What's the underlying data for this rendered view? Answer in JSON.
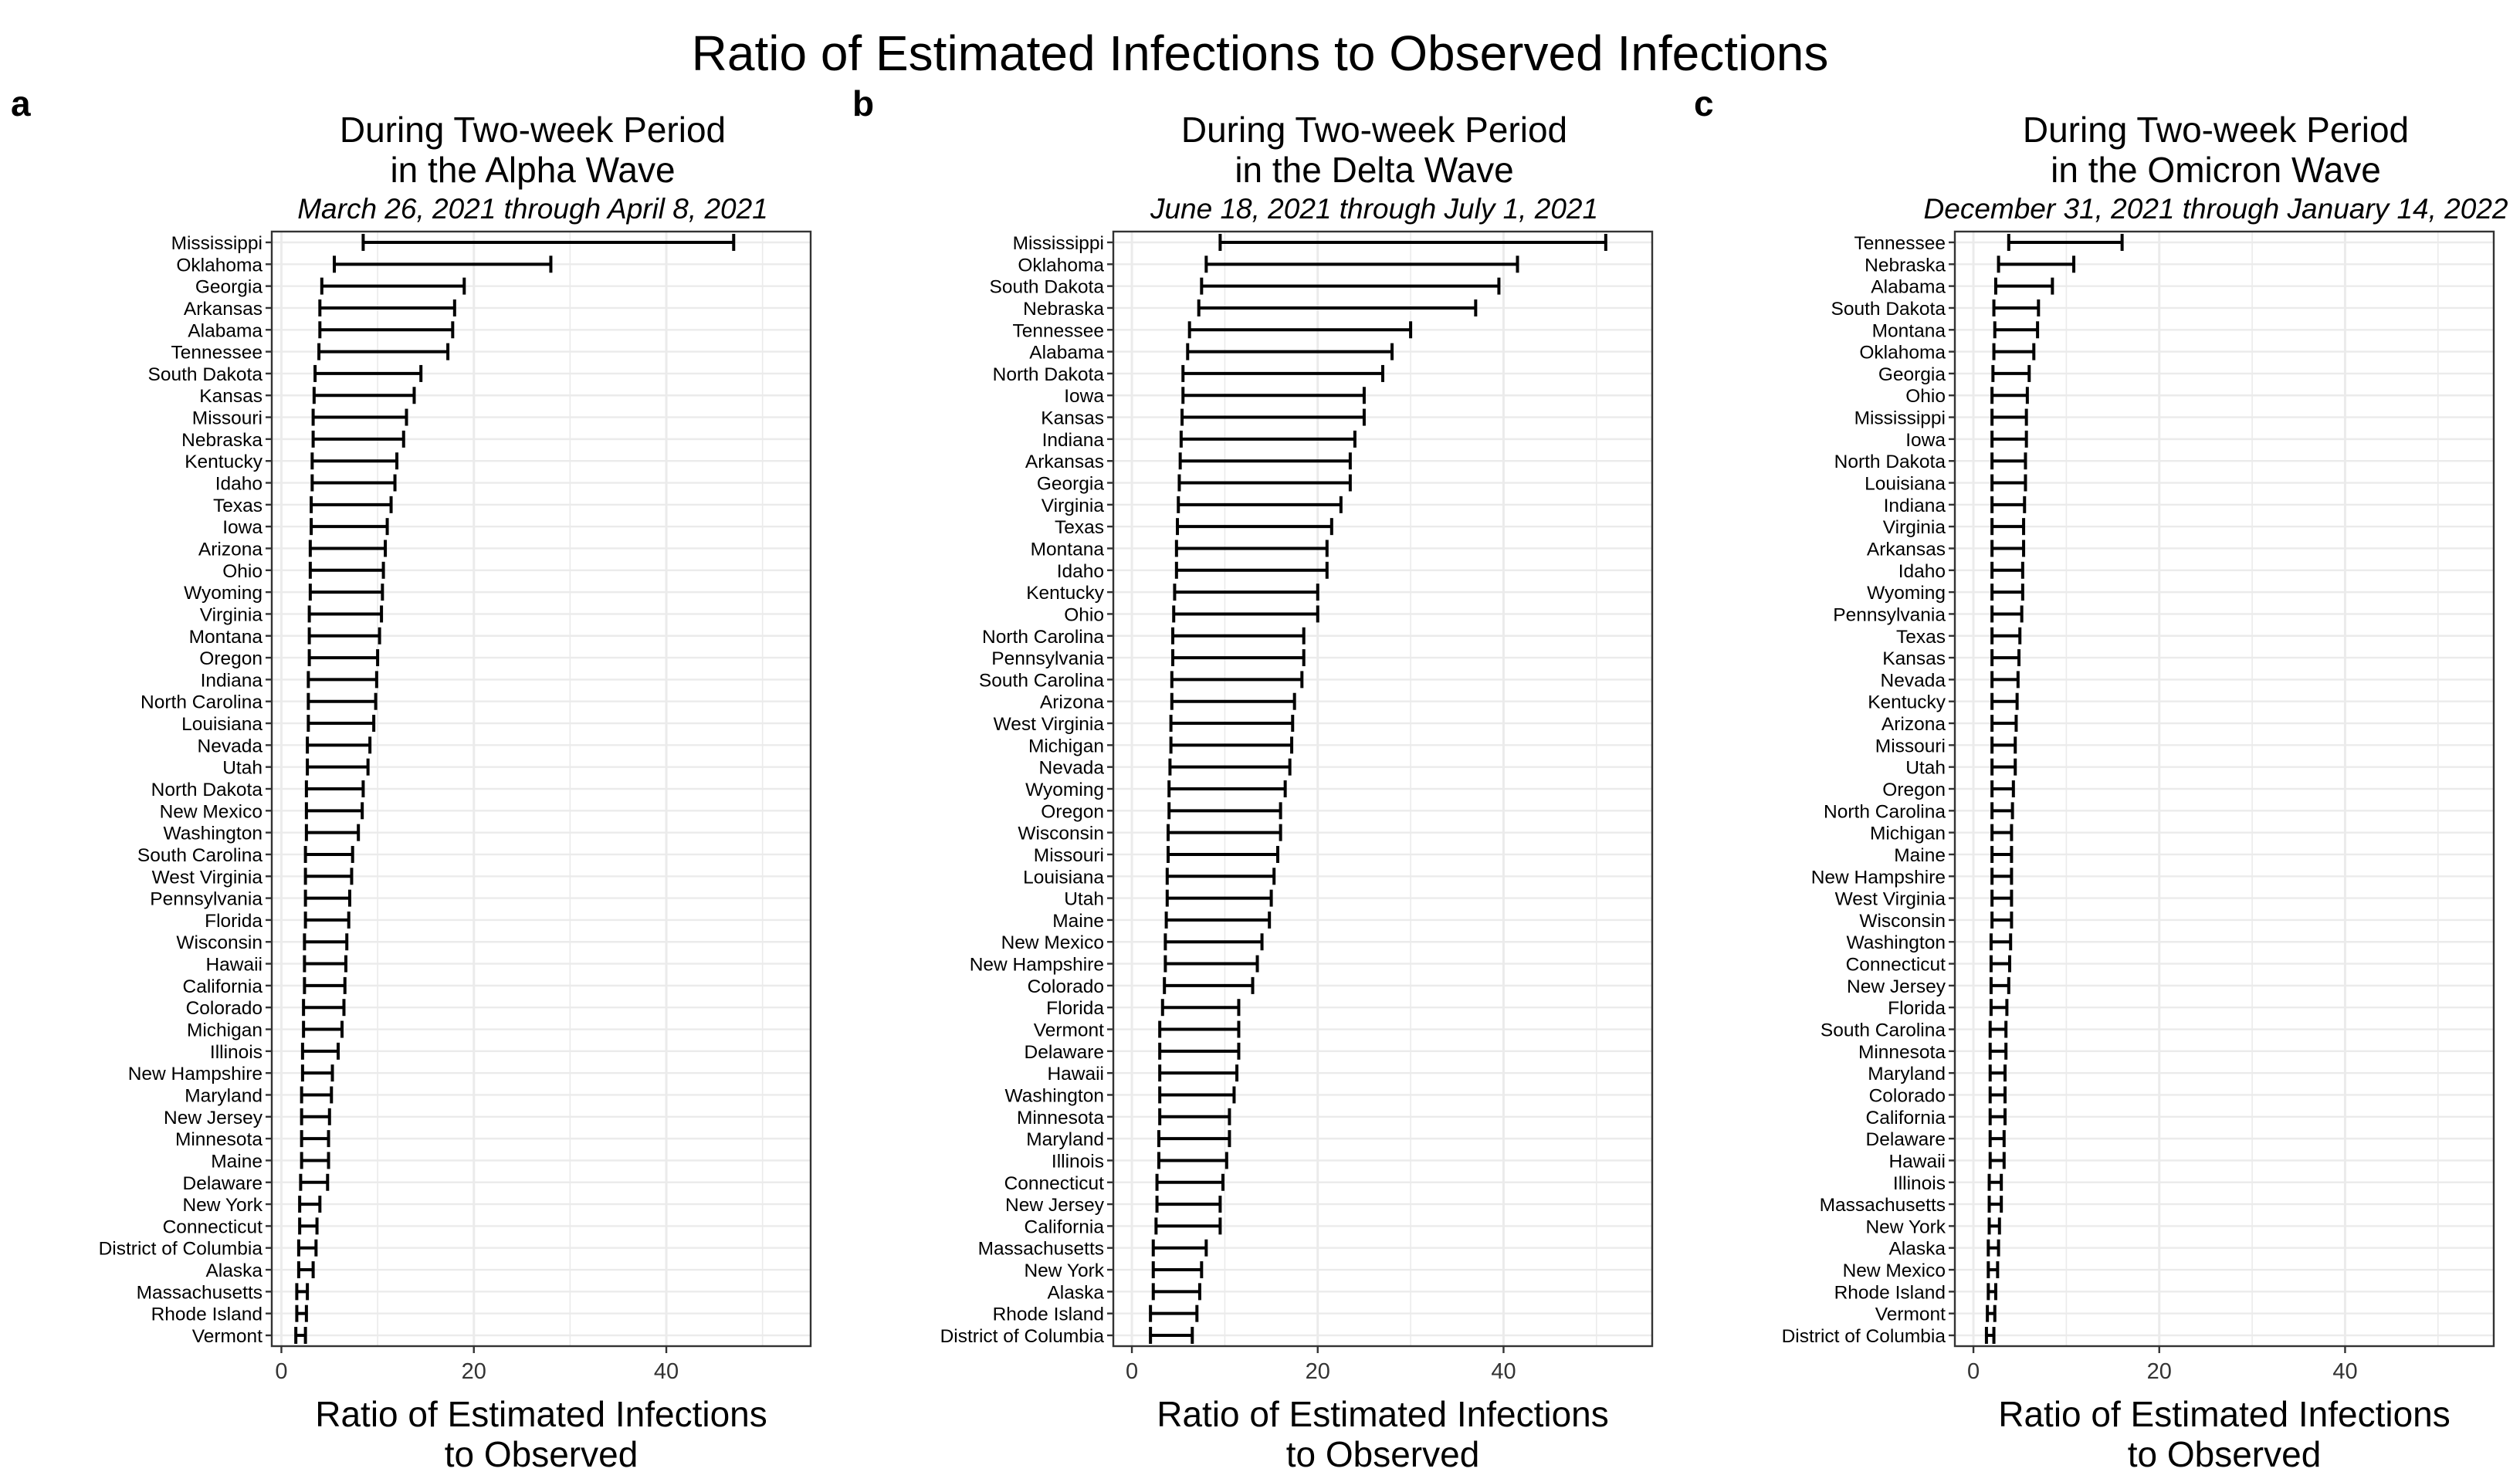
{
  "title": "Ratio of Estimated Infections to Observed Infections",
  "chart_data": [
    {
      "type": "interval",
      "panel_label": "a",
      "title": "During Two-week Period",
      "title_line2": "in the Alpha Wave",
      "subtitle": "March 26, 2021 through April 8, 2021",
      "xlabel": "Ratio of Estimated Infections",
      "xlabel_line2": "to Observed",
      "xlim": [
        -1,
        55
      ],
      "xticks": [
        0,
        20,
        40
      ],
      "grid": true,
      "categories": [
        "Mississippi",
        "Oklahoma",
        "Georgia",
        "Arkansas",
        "Alabama",
        "Tennessee",
        "South Dakota",
        "Kansas",
        "Missouri",
        "Nebraska",
        "Kentucky",
        "Idaho",
        "Texas",
        "Iowa",
        "Arizona",
        "Ohio",
        "Wyoming",
        "Virginia",
        "Montana",
        "Oregon",
        "Indiana",
        "North Carolina",
        "Louisiana",
        "Nevada",
        "Utah",
        "North Dakota",
        "New Mexico",
        "Washington",
        "South Carolina",
        "West Virginia",
        "Pennsylvania",
        "Florida",
        "Wisconsin",
        "Hawaii",
        "California",
        "Colorado",
        "Michigan",
        "Illinois",
        "New Hampshire",
        "Maryland",
        "New Jersey",
        "Minnesota",
        "Maine",
        "Delaware",
        "New York",
        "Connecticut",
        "District of Columbia",
        "Alaska",
        "Massachusetts",
        "Rhode Island",
        "Vermont"
      ],
      "lower": [
        8.5,
        5.5,
        4.2,
        4.0,
        4.0,
        3.9,
        3.5,
        3.4,
        3.3,
        3.3,
        3.2,
        3.2,
        3.1,
        3.1,
        3.0,
        3.0,
        3.0,
        2.9,
        2.9,
        2.9,
        2.8,
        2.8,
        2.8,
        2.7,
        2.7,
        2.6,
        2.6,
        2.6,
        2.5,
        2.5,
        2.5,
        2.5,
        2.4,
        2.4,
        2.4,
        2.3,
        2.3,
        2.2,
        2.2,
        2.1,
        2.1,
        2.1,
        2.1,
        2.0,
        1.9,
        1.9,
        1.8,
        1.8,
        1.6,
        1.6,
        1.5
      ],
      "upper": [
        47.0,
        28.0,
        19.0,
        18.0,
        17.8,
        17.3,
        14.5,
        13.8,
        13.0,
        12.7,
        12.0,
        11.8,
        11.4,
        11.0,
        10.8,
        10.6,
        10.5,
        10.4,
        10.2,
        10.0,
        9.9,
        9.8,
        9.6,
        9.2,
        9.0,
        8.5,
        8.4,
        8.0,
        7.4,
        7.3,
        7.1,
        7.0,
        6.8,
        6.7,
        6.6,
        6.5,
        6.3,
        5.9,
        5.3,
        5.2,
        5.0,
        4.9,
        4.9,
        4.8,
        4.0,
        3.7,
        3.6,
        3.3,
        2.7,
        2.6,
        2.5
      ]
    },
    {
      "type": "interval",
      "panel_label": "b",
      "title": "During Two-week Period",
      "title_line2": "in the Delta Wave",
      "subtitle": "June 18, 2021 through July 1, 2021",
      "xlabel": "Ratio of Estimated Infections",
      "xlabel_line2": "to Observed",
      "xlim": [
        -2,
        56
      ],
      "xticks": [
        0,
        20,
        40
      ],
      "grid": true,
      "categories": [
        "Mississippi",
        "Oklahoma",
        "South Dakota",
        "Nebraska",
        "Tennessee",
        "Alabama",
        "North Dakota",
        "Iowa",
        "Kansas",
        "Indiana",
        "Arkansas",
        "Georgia",
        "Virginia",
        "Texas",
        "Montana",
        "Idaho",
        "Kentucky",
        "Ohio",
        "North Carolina",
        "Pennsylvania",
        "South Carolina",
        "Arizona",
        "West Virginia",
        "Michigan",
        "Nevada",
        "Wyoming",
        "Oregon",
        "Wisconsin",
        "Missouri",
        "Louisiana",
        "Utah",
        "Maine",
        "New Mexico",
        "New Hampshire",
        "Colorado",
        "Florida",
        "Vermont",
        "Delaware",
        "Hawaii",
        "Washington",
        "Minnesota",
        "Maryland",
        "Illinois",
        "Connecticut",
        "New Jersey",
        "California",
        "Massachusetts",
        "New York",
        "Alaska",
        "Rhode Island",
        "District of Columbia"
      ],
      "lower": [
        9.5,
        8.0,
        7.5,
        7.2,
        6.2,
        6.0,
        5.5,
        5.5,
        5.4,
        5.3,
        5.2,
        5.1,
        5.0,
        4.9,
        4.8,
        4.8,
        4.6,
        4.5,
        4.4,
        4.4,
        4.3,
        4.3,
        4.2,
        4.2,
        4.1,
        4.0,
        4.0,
        3.9,
        3.9,
        3.8,
        3.8,
        3.7,
        3.6,
        3.6,
        3.5,
        3.3,
        3.0,
        3.0,
        3.0,
        3.0,
        3.0,
        2.9,
        2.9,
        2.7,
        2.7,
        2.6,
        2.3,
        2.3,
        2.3,
        2.0,
        2.0
      ],
      "upper": [
        51.0,
        41.5,
        39.5,
        37.0,
        30.0,
        28.0,
        27.0,
        25.0,
        25.0,
        24.0,
        23.5,
        23.5,
        22.5,
        21.5,
        21.0,
        21.0,
        20.0,
        20.0,
        18.5,
        18.5,
        18.3,
        17.5,
        17.3,
        17.2,
        17.0,
        16.5,
        16.0,
        16.0,
        15.7,
        15.3,
        15.0,
        14.8,
        14.0,
        13.5,
        13.0,
        11.5,
        11.5,
        11.5,
        11.3,
        11.0,
        10.5,
        10.5,
        10.2,
        9.8,
        9.5,
        9.5,
        8.0,
        7.5,
        7.3,
        7.0,
        6.5
      ]
    },
    {
      "type": "interval",
      "panel_label": "c",
      "title": "During Two-week Period",
      "title_line2": "in the Omicron Wave",
      "subtitle": "December 31, 2021 through January 14, 2022",
      "xlabel": "Ratio of Estimated Infections",
      "xlabel_line2": "to Observed",
      "xlim": [
        -2,
        56
      ],
      "xticks": [
        0,
        20,
        40
      ],
      "grid": true,
      "categories": [
        "Tennessee",
        "Nebraska",
        "Alabama",
        "South Dakota",
        "Montana",
        "Oklahoma",
        "Georgia",
        "Ohio",
        "Mississippi",
        "Iowa",
        "North Dakota",
        "Louisiana",
        "Indiana",
        "Virginia",
        "Arkansas",
        "Idaho",
        "Wyoming",
        "Pennsylvania",
        "Texas",
        "Kansas",
        "Nevada",
        "Kentucky",
        "Arizona",
        "Missouri",
        "Utah",
        "Oregon",
        "North Carolina",
        "Michigan",
        "Maine",
        "New Hampshire",
        "West Virginia",
        "Wisconsin",
        "Washington",
        "Connecticut",
        "New Jersey",
        "Florida",
        "South Carolina",
        "Minnesota",
        "Maryland",
        "Colorado",
        "California",
        "Delaware",
        "Hawaii",
        "Illinois",
        "Massachusetts",
        "New York",
        "Alaska",
        "New Mexico",
        "Rhode Island",
        "Vermont",
        "District of Columbia"
      ],
      "lower": [
        3.8,
        2.7,
        2.4,
        2.2,
        2.3,
        2.2,
        2.1,
        2.0,
        2.0,
        2.0,
        2.0,
        2.0,
        2.0,
        2.0,
        2.0,
        2.0,
        2.0,
        2.0,
        2.0,
        2.0,
        2.0,
        2.0,
        2.0,
        2.0,
        2.0,
        2.0,
        2.0,
        2.0,
        2.0,
        2.0,
        2.0,
        2.0,
        1.9,
        1.9,
        1.9,
        1.9,
        1.8,
        1.8,
        1.8,
        1.8,
        1.8,
        1.8,
        1.8,
        1.7,
        1.7,
        1.7,
        1.6,
        1.6,
        1.6,
        1.5,
        1.4
      ],
      "upper": [
        16.0,
        10.8,
        8.5,
        7.0,
        6.9,
        6.5,
        6.0,
        5.8,
        5.7,
        5.7,
        5.6,
        5.6,
        5.5,
        5.4,
        5.4,
        5.3,
        5.3,
        5.2,
        5.0,
        4.9,
        4.8,
        4.7,
        4.6,
        4.5,
        4.5,
        4.3,
        4.2,
        4.1,
        4.1,
        4.1,
        4.1,
        4.1,
        4.0,
        3.9,
        3.8,
        3.6,
        3.5,
        3.5,
        3.4,
        3.4,
        3.4,
        3.3,
        3.3,
        3.0,
        3.0,
        2.8,
        2.7,
        2.6,
        2.4,
        2.3,
        2.2
      ]
    }
  ]
}
